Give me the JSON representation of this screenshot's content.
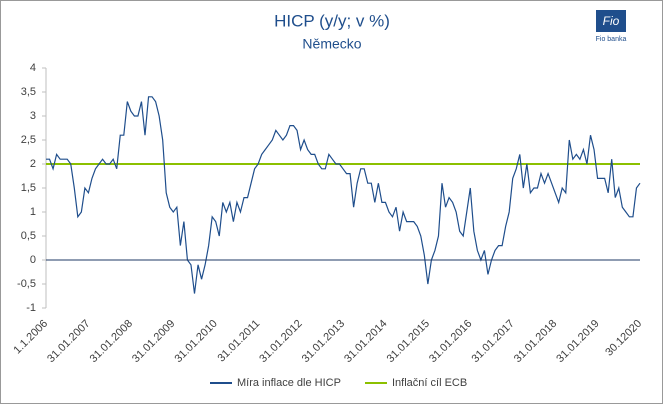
{
  "chart_data": {
    "type": "line",
    "title": "HICP (y/y; v %)",
    "subtitle": "Německo",
    "logo_text": "Fio banka",
    "categories": [
      "1.1.2006",
      null,
      null,
      null,
      null,
      null,
      null,
      null,
      null,
      null,
      null,
      null,
      "31.01.2007",
      null,
      null,
      null,
      null,
      null,
      null,
      null,
      null,
      null,
      null,
      null,
      "31.01.2008",
      null,
      null,
      null,
      null,
      null,
      null,
      null,
      null,
      null,
      null,
      null,
      "31.01.2009",
      null,
      null,
      null,
      null,
      null,
      null,
      null,
      null,
      null,
      null,
      null,
      "31.01.2010",
      null,
      null,
      null,
      null,
      null,
      null,
      null,
      null,
      null,
      null,
      null,
      "31.01.2011",
      null,
      null,
      null,
      null,
      null,
      null,
      null,
      null,
      null,
      null,
      null,
      "31.01.2012",
      null,
      null,
      null,
      null,
      null,
      null,
      null,
      null,
      null,
      null,
      null,
      "31.01.2013",
      null,
      null,
      null,
      null,
      null,
      null,
      null,
      null,
      null,
      null,
      null,
      "31.01.2014",
      null,
      null,
      null,
      null,
      null,
      null,
      null,
      null,
      null,
      null,
      null,
      "31.01.2015",
      null,
      null,
      null,
      null,
      null,
      null,
      null,
      null,
      null,
      null,
      null,
      "31.01.2016",
      null,
      null,
      null,
      null,
      null,
      null,
      null,
      null,
      null,
      null,
      null,
      "31.01.2017",
      null,
      null,
      null,
      null,
      null,
      null,
      null,
      null,
      null,
      null,
      null,
      "31.01.2018",
      null,
      null,
      null,
      null,
      null,
      null,
      null,
      null,
      null,
      null,
      null,
      "31.01.2019",
      null,
      null,
      null,
      null,
      null,
      null,
      null,
      null,
      null,
      null,
      null,
      "30.12020"
    ],
    "series": [
      {
        "name": "Míra inflace dle HICP",
        "color": "#1f4e8c",
        "values": [
          2.1,
          2.1,
          1.9,
          2.2,
          2.1,
          2.1,
          2.1,
          2.0,
          1.5,
          0.9,
          1.0,
          1.5,
          1.4,
          1.7,
          1.9,
          2.0,
          2.1,
          2.0,
          2.0,
          2.1,
          1.9,
          2.6,
          2.6,
          3.3,
          3.1,
          3.0,
          3.0,
          3.3,
          2.6,
          3.4,
          3.4,
          3.3,
          3.0,
          2.5,
          1.4,
          1.1,
          1.0,
          1.1,
          0.3,
          0.8,
          0.0,
          -0.1,
          -0.7,
          -0.1,
          -0.4,
          -0.1,
          0.3,
          0.9,
          0.8,
          0.5,
          1.2,
          1.0,
          1.2,
          0.8,
          1.2,
          1.0,
          1.3,
          1.3,
          1.6,
          1.9,
          2.0,
          2.2,
          2.3,
          2.4,
          2.5,
          2.7,
          2.6,
          2.5,
          2.6,
          2.8,
          2.8,
          2.7,
          2.3,
          2.5,
          2.3,
          2.2,
          2.2,
          2.0,
          1.9,
          1.9,
          2.2,
          2.1,
          2.0,
          2.0,
          1.9,
          1.8,
          1.8,
          1.1,
          1.6,
          1.9,
          1.9,
          1.6,
          1.6,
          1.2,
          1.6,
          1.2,
          1.2,
          1.0,
          0.9,
          1.1,
          0.6,
          1.0,
          0.8,
          0.8,
          0.8,
          0.7,
          0.5,
          0.1,
          -0.5,
          0.0,
          0.2,
          0.5,
          1.6,
          1.1,
          1.3,
          1.2,
          1.0,
          0.6,
          0.5,
          1.0,
          1.5,
          0.6,
          0.2,
          0.0,
          0.2,
          -0.3,
          0.0,
          0.2,
          0.3,
          0.3,
          0.7,
          1.0,
          1.7,
          1.9,
          2.2,
          1.5,
          2.0,
          1.4,
          1.5,
          1.5,
          1.8,
          1.6,
          1.8,
          1.6,
          1.4,
          1.2,
          1.5,
          1.4,
          2.5,
          2.1,
          2.2,
          2.1,
          2.3,
          2.0,
          2.6,
          2.3,
          1.7,
          1.7,
          1.7,
          1.4,
          2.1,
          1.3,
          1.5,
          1.1,
          1.0,
          0.9,
          0.9,
          1.5,
          1.6
        ]
      },
      {
        "name": "Inflační cíl ECB",
        "color": "#8cc000",
        "values": [
          2,
          2,
          2,
          2,
          2,
          2,
          2,
          2,
          2,
          2,
          2,
          2,
          2,
          2,
          2,
          2,
          2,
          2,
          2,
          2,
          2,
          2,
          2,
          2,
          2,
          2,
          2,
          2,
          2,
          2,
          2,
          2,
          2,
          2,
          2,
          2,
          2,
          2,
          2,
          2,
          2,
          2,
          2,
          2,
          2,
          2,
          2,
          2,
          2,
          2,
          2,
          2,
          2,
          2,
          2,
          2,
          2,
          2,
          2,
          2,
          2,
          2,
          2,
          2,
          2,
          2,
          2,
          2,
          2,
          2,
          2,
          2,
          2,
          2,
          2,
          2,
          2,
          2,
          2,
          2,
          2,
          2,
          2,
          2,
          2,
          2,
          2,
          2,
          2,
          2,
          2,
          2,
          2,
          2,
          2,
          2,
          2,
          2,
          2,
          2,
          2,
          2,
          2,
          2,
          2,
          2,
          2,
          2,
          2,
          2,
          2,
          2,
          2,
          2,
          2,
          2,
          2,
          2,
          2,
          2,
          2,
          2,
          2,
          2,
          2,
          2,
          2,
          2,
          2,
          2,
          2,
          2,
          2,
          2,
          2,
          2,
          2,
          2,
          2,
          2,
          2,
          2,
          2,
          2,
          2,
          2,
          2,
          2,
          2,
          2,
          2,
          2,
          2,
          2,
          2,
          2,
          2,
          2,
          2,
          2,
          2,
          2,
          2,
          2,
          2,
          2,
          2,
          2,
          2
        ]
      }
    ],
    "ylim": [
      -1,
      4
    ],
    "yticks": [
      -1,
      {
        "value": -0.5,
        "label": "-0,5"
      },
      0,
      {
        "value": 0.5,
        "label": "0,5"
      },
      1,
      {
        "value": 1.5,
        "label": "1,5"
      },
      2,
      {
        "value": 2.5,
        "label": "2,5"
      },
      3,
      {
        "value": 3.5,
        "label": "3,5"
      },
      4
    ],
    "zero_line_color": "#1f3864",
    "legend": "bottom"
  }
}
